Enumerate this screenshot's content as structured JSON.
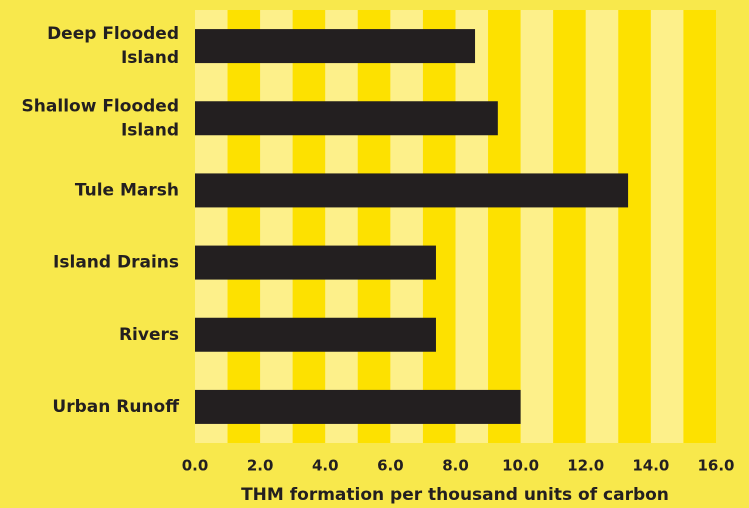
{
  "chart_data": {
    "type": "hbar",
    "x_label": "THM formation per thousand units of carbon",
    "categories": [
      "Deep Flooded Island",
      "Shallow Flooded Island",
      "Tule Marsh",
      "Island Drains",
      "Rivers",
      "Urban Runoff"
    ],
    "values": [
      8.6,
      9.3,
      13.3,
      7.4,
      7.4,
      10.0
    ],
    "color": "#231f20",
    "xlim": [
      0,
      16
    ],
    "xticks": [
      {
        "value": 0,
        "label": "0.0"
      },
      {
        "value": 2,
        "label": "2.0"
      },
      {
        "value": 4,
        "label": "4.0"
      },
      {
        "value": 6,
        "label": "6.0"
      },
      {
        "value": 8,
        "label": "8.0"
      },
      {
        "value": 10,
        "label": "10.0"
      },
      {
        "value": 12,
        "label": "12.0"
      },
      {
        "value": 14,
        "label": "14.0"
      },
      {
        "value": 16,
        "label": "16.0"
      }
    ]
  }
}
